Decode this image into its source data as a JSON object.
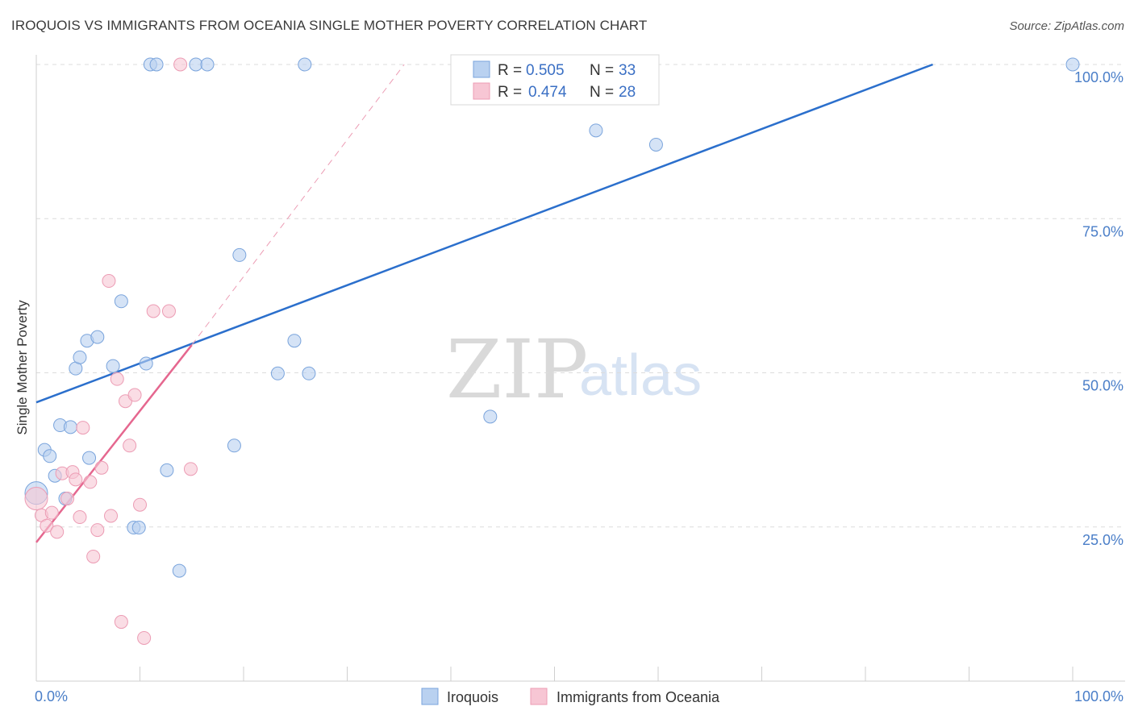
{
  "header": {
    "title": "IROQUOIS VS IMMIGRANTS FROM OCEANIA SINGLE MOTHER POVERTY CORRELATION CHART",
    "source": "Source: ZipAtlas.com"
  },
  "watermark": {
    "zip": "ZIP",
    "atlas": "atlas"
  },
  "colors": {
    "blue_fill": "#b9d1f0",
    "blue_stroke": "#7aa4dc",
    "blue_line": "#2b6fcc",
    "pink_fill": "#f7c6d4",
    "pink_stroke": "#ec9cb4",
    "pink_line": "#e5678f",
    "grid": "#dcdcdc",
    "tick_text": "#4a7ec8"
  },
  "legend": {
    "series": [
      {
        "r_label": "R =",
        "r_value": "0.505",
        "n_label": "N =",
        "n_value": "33"
      },
      {
        "r_label": "R =",
        "r_value": "0.474",
        "n_label": "N =",
        "n_value": "28"
      }
    ]
  },
  "chart_data": {
    "type": "scatter",
    "title": "IROQUOIS VS IMMIGRANTS FROM OCEANIA SINGLE MOTHER POVERTY CORRELATION CHART",
    "xlabel": "",
    "ylabel": "Single Mother Poverty",
    "xlim": [
      0,
      100
    ],
    "ylim": [
      0,
      100
    ],
    "x_tick_labels": [
      "0.0%",
      "100.0%"
    ],
    "y_ticks": [
      25,
      50,
      75,
      100
    ],
    "y_tick_labels": [
      "25.0%",
      "50.0%",
      "75.0%",
      "100.0%"
    ],
    "grid": true,
    "legend_position": "top-center",
    "series": [
      {
        "name": "Iroquois",
        "r": 0.505,
        "n": 33,
        "trend": {
          "x0": 0,
          "y0": 45.2,
          "x1": 86.5,
          "y1": 100
        },
        "points": [
          [
            0.0,
            30.5
          ],
          [
            0.8,
            37.5
          ],
          [
            1.3,
            36.5
          ],
          [
            1.8,
            33.3
          ],
          [
            2.3,
            41.5
          ],
          [
            2.8,
            29.6
          ],
          [
            3.3,
            41.2
          ],
          [
            3.8,
            50.7
          ],
          [
            4.2,
            52.5
          ],
          [
            4.9,
            55.2
          ],
          [
            5.1,
            36.2
          ],
          [
            5.9,
            55.8
          ],
          [
            7.4,
            51.1
          ],
          [
            8.2,
            61.6
          ],
          [
            9.4,
            24.9
          ],
          [
            9.9,
            24.9
          ],
          [
            10.6,
            51.5
          ],
          [
            11.0,
            100
          ],
          [
            11.6,
            100
          ],
          [
            12.6,
            34.2
          ],
          [
            13.8,
            17.9
          ],
          [
            15.4,
            100
          ],
          [
            16.5,
            100
          ],
          [
            19.1,
            38.2
          ],
          [
            19.6,
            69.1
          ],
          [
            23.3,
            49.9
          ],
          [
            24.9,
            55.2
          ],
          [
            25.9,
            100
          ],
          [
            26.3,
            49.9
          ],
          [
            43.8,
            42.9
          ],
          [
            54.0,
            89.3
          ],
          [
            59.8,
            87.0
          ],
          [
            100.0,
            100
          ]
        ]
      },
      {
        "name": "Immigrants from Oceania",
        "r": 0.474,
        "n": 28,
        "trend": {
          "x0": 0,
          "y0": 22.5,
          "x1": 15.0,
          "y1": 54.5
        },
        "trend_dashed": {
          "x0": 15.0,
          "y0": 54.5,
          "x1": 35.5,
          "y1": 100
        },
        "points": [
          [
            0.0,
            29.6
          ],
          [
            0.5,
            26.9
          ],
          [
            1.0,
            25.2
          ],
          [
            1.5,
            27.3
          ],
          [
            2.0,
            24.2
          ],
          [
            2.5,
            33.7
          ],
          [
            3.0,
            29.6
          ],
          [
            3.5,
            33.9
          ],
          [
            3.8,
            32.7
          ],
          [
            4.2,
            26.6
          ],
          [
            4.5,
            41.1
          ],
          [
            5.2,
            32.3
          ],
          [
            5.5,
            20.2
          ],
          [
            5.9,
            24.5
          ],
          [
            6.3,
            34.6
          ],
          [
            7.0,
            64.9
          ],
          [
            7.2,
            26.8
          ],
          [
            7.8,
            49.0
          ],
          [
            8.2,
            9.6
          ],
          [
            8.6,
            45.4
          ],
          [
            9.0,
            38.2
          ],
          [
            9.5,
            46.4
          ],
          [
            10.0,
            28.6
          ],
          [
            10.4,
            7.0
          ],
          [
            11.3,
            60.0
          ],
          [
            12.8,
            60.0
          ],
          [
            13.9,
            100
          ],
          [
            14.9,
            34.4
          ]
        ]
      }
    ]
  },
  "bottom_legend": {
    "items": [
      "Iroquois",
      "Immigrants from Oceania"
    ]
  }
}
